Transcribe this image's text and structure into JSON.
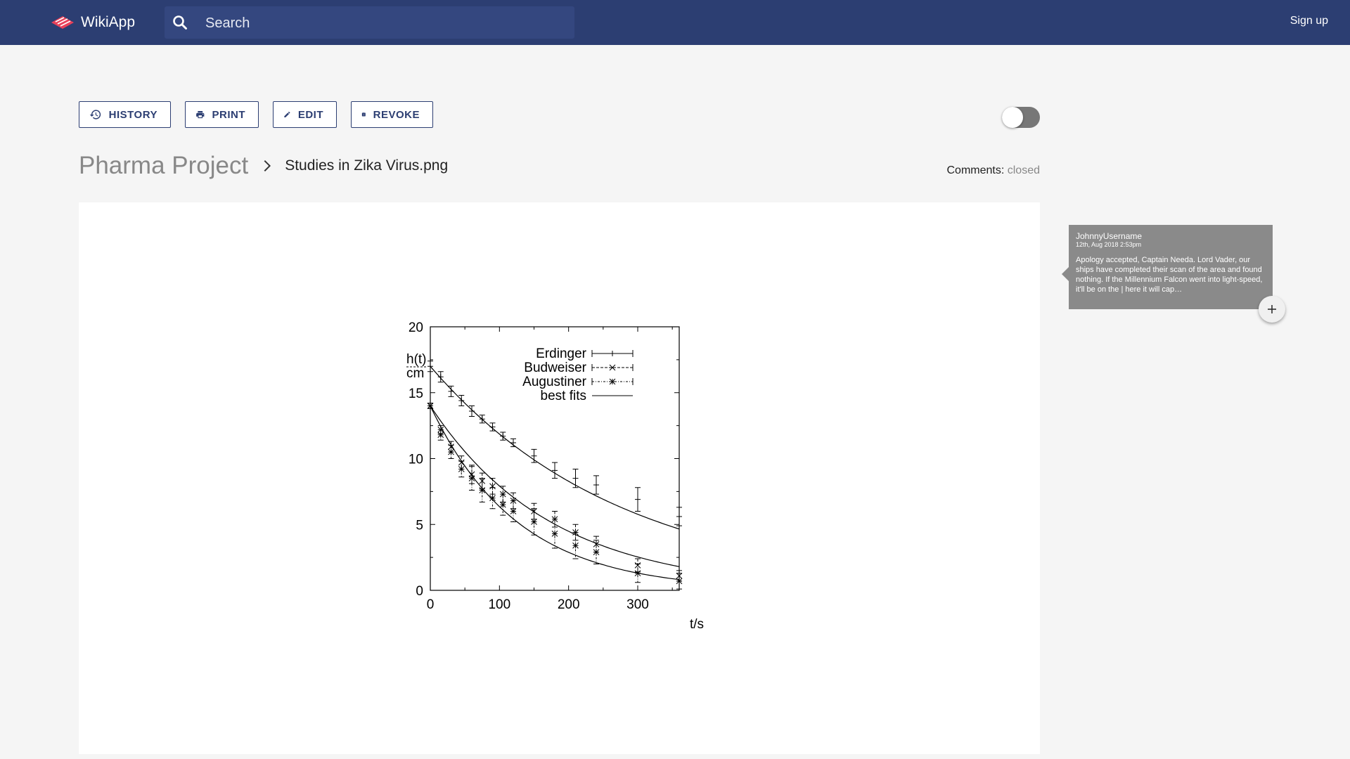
{
  "app": {
    "name": "WikiApp",
    "logo_icon": "wikiapp-logo-icon",
    "accent": "#2c3e72"
  },
  "header": {
    "search_placeholder": "Search",
    "search_icon": "search-icon",
    "signup_label": "Sign up"
  },
  "toolbar": {
    "history_label": "HISTORY",
    "print_label": "PRINT",
    "edit_label": "EDIT",
    "revoke_label": "REVOKE",
    "toggle_on": false
  },
  "breadcrumb": {
    "root": "Pharma Project",
    "current": "Studies in Zika Virus.png"
  },
  "comments": {
    "label": "Comments:",
    "status": "closed"
  },
  "comment_card": {
    "user": "JohnnyUsername",
    "date": "12th, Aug 2018 2:53pm",
    "body": "Apology accepted, Captain Needa. Lord Vader, our ships have completed their scan of the area and found nothing. If the Millennium Falcon went into light-speed, it'll be on the | here it will cap…"
  },
  "chart_data": {
    "type": "scatter",
    "ylabel_line1": "h(t)",
    "ylabel_line2": "cm",
    "xlabel": "t/s",
    "xlim": [
      0,
      360
    ],
    "ylim": [
      0,
      20
    ],
    "x_ticks": [
      0,
      100,
      200,
      300
    ],
    "y_ticks": [
      0,
      5,
      10,
      15,
      20
    ],
    "legend_position": "top-right",
    "series": [
      {
        "name": "Erdinger",
        "marker": "plus",
        "points": [
          [
            0,
            17.0,
            0.4
          ],
          [
            15,
            16.2,
            0.4
          ],
          [
            30,
            15.1,
            0.4
          ],
          [
            45,
            14.4,
            0.4
          ],
          [
            60,
            13.6,
            0.4
          ],
          [
            75,
            13.0,
            0.3
          ],
          [
            90,
            12.4,
            0.3
          ],
          [
            105,
            11.7,
            0.3
          ],
          [
            120,
            11.2,
            0.3
          ],
          [
            150,
            10.2,
            0.5
          ],
          [
            180,
            9.1,
            0.6
          ],
          [
            210,
            8.5,
            0.7
          ],
          [
            240,
            8.0,
            0.7
          ],
          [
            300,
            6.9,
            0.9
          ],
          [
            360,
            5.6,
            0.7
          ]
        ]
      },
      {
        "name": "Budweiser",
        "marker": "cross",
        "points": [
          [
            0,
            14.0,
            0.2
          ],
          [
            15,
            12.2,
            0.3
          ],
          [
            30,
            10.9,
            0.4
          ],
          [
            45,
            9.7,
            0.5
          ],
          [
            60,
            8.8,
            0.7
          ],
          [
            75,
            8.3,
            0.6
          ],
          [
            90,
            7.9,
            0.6
          ],
          [
            105,
            7.3,
            0.6
          ],
          [
            120,
            6.8,
            0.6
          ],
          [
            150,
            6.0,
            0.6
          ],
          [
            180,
            5.4,
            0.6
          ],
          [
            210,
            4.4,
            0.6
          ],
          [
            240,
            3.5,
            0.6
          ],
          [
            300,
            1.9,
            0.5
          ],
          [
            360,
            1.1,
            0.4
          ]
        ]
      },
      {
        "name": "Augustiner",
        "marker": "star",
        "points": [
          [
            0,
            14.0,
            0.2
          ],
          [
            15,
            11.8,
            0.4
          ],
          [
            30,
            10.5,
            0.5
          ],
          [
            45,
            9.2,
            0.6
          ],
          [
            60,
            8.5,
            0.9
          ],
          [
            75,
            7.6,
            0.9
          ],
          [
            90,
            7.0,
            0.8
          ],
          [
            105,
            6.5,
            0.8
          ],
          [
            120,
            6.0,
            0.8
          ],
          [
            150,
            5.2,
            1.0
          ],
          [
            180,
            4.3,
            1.1
          ],
          [
            210,
            3.4,
            1.0
          ],
          [
            240,
            2.9,
            0.9
          ],
          [
            300,
            1.3,
            0.7
          ],
          [
            360,
            0.7,
            0.6
          ]
        ]
      },
      {
        "name": "best fits",
        "marker": "none",
        "curves": [
          {
            "a": 17.0,
            "k": 0.0036
          },
          {
            "a": 14.0,
            "k": 0.0057
          },
          {
            "a": 14.0,
            "k": 0.0079
          }
        ]
      }
    ]
  }
}
